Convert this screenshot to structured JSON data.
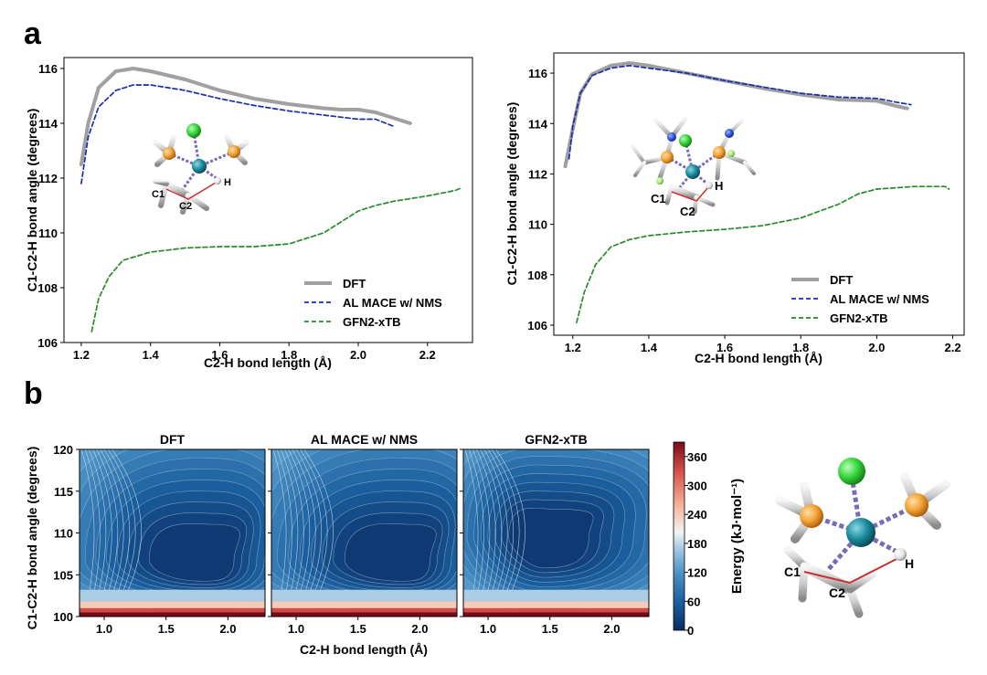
{
  "panels": {
    "a_label": "a",
    "b_label": "b"
  },
  "chart_data": [
    {
      "type": "line",
      "panel": "a-left",
      "xlabel": "C2-H bond length (Å)",
      "ylabel": "C1-C2-H bond angle (degrees)",
      "xlim": [
        1.15,
        2.33
      ],
      "ylim": [
        106.0,
        116.4
      ],
      "xticks": [
        "1.2",
        "1.4",
        "1.6",
        "1.8",
        "2.0",
        "2.2"
      ],
      "yticks": [
        "106",
        "108",
        "110",
        "112",
        "114",
        "116"
      ],
      "legend_position": "lower-right",
      "series": [
        {
          "name": "DFT",
          "color": "#a0a0a0",
          "style": "solid",
          "x": [
            1.2,
            1.22,
            1.25,
            1.3,
            1.35,
            1.4,
            1.5,
            1.6,
            1.7,
            1.8,
            1.9,
            1.95,
            2.0,
            2.05,
            2.1,
            2.15
          ],
          "y": [
            112.5,
            114.0,
            115.3,
            115.9,
            116.0,
            115.9,
            115.6,
            115.2,
            114.9,
            114.7,
            114.55,
            114.5,
            114.5,
            114.4,
            114.2,
            114.0
          ]
        },
        {
          "name": "AL MACE w/ NMS",
          "color": "#1a2faa",
          "style": "dashed",
          "x": [
            1.2,
            1.22,
            1.25,
            1.3,
            1.35,
            1.4,
            1.5,
            1.6,
            1.7,
            1.8,
            1.9,
            2.0,
            2.05,
            2.1
          ],
          "y": [
            111.8,
            113.5,
            114.6,
            115.2,
            115.4,
            115.4,
            115.2,
            114.9,
            114.65,
            114.45,
            114.3,
            114.15,
            114.15,
            113.9
          ]
        },
        {
          "name": "GFN2-xTB",
          "color": "#2a8a2a",
          "style": "dashed",
          "x": [
            1.23,
            1.25,
            1.28,
            1.32,
            1.4,
            1.5,
            1.6,
            1.7,
            1.8,
            1.9,
            1.95,
            2.0,
            2.05,
            2.1,
            2.2,
            2.28,
            2.3
          ],
          "y": [
            106.4,
            107.6,
            108.4,
            109.0,
            109.3,
            109.45,
            109.5,
            109.5,
            109.6,
            110.0,
            110.4,
            110.8,
            111.0,
            111.15,
            111.35,
            111.55,
            111.65
          ]
        }
      ]
    },
    {
      "type": "line",
      "panel": "a-right",
      "xlabel": "C2-H bond length (Å)",
      "ylabel": "C1-C2-H bond angle (degrees)",
      "xlim": [
        1.15,
        2.23
      ],
      "ylim": [
        105.6,
        116.8
      ],
      "xticks": [
        "1.2",
        "1.4",
        "1.6",
        "1.8",
        "2.0",
        "2.2"
      ],
      "yticks": [
        "106",
        "108",
        "110",
        "112",
        "114",
        "116"
      ],
      "legend_position": "lower-right",
      "series": [
        {
          "name": "DFT",
          "color": "#a0a0a0",
          "style": "solid",
          "x": [
            1.18,
            1.2,
            1.22,
            1.25,
            1.3,
            1.35,
            1.4,
            1.5,
            1.6,
            1.7,
            1.8,
            1.9,
            2.0,
            2.05,
            2.08
          ],
          "y": [
            112.3,
            113.8,
            115.2,
            115.95,
            116.3,
            116.4,
            116.3,
            116.0,
            115.7,
            115.4,
            115.15,
            114.95,
            114.9,
            114.7,
            114.6
          ]
        },
        {
          "name": "AL MACE w/ NMS",
          "color": "#1a2faa",
          "style": "dashed",
          "x": [
            1.19,
            1.2,
            1.22,
            1.25,
            1.3,
            1.35,
            1.4,
            1.5,
            1.6,
            1.7,
            1.8,
            1.9,
            2.0,
            2.05,
            2.09
          ],
          "y": [
            112.6,
            113.9,
            115.2,
            115.9,
            116.2,
            116.3,
            116.2,
            116.0,
            115.7,
            115.45,
            115.2,
            115.05,
            115.0,
            114.85,
            114.75
          ]
        },
        {
          "name": "GFN2-xTB",
          "color": "#2a8a2a",
          "style": "dashed",
          "x": [
            1.21,
            1.23,
            1.26,
            1.3,
            1.35,
            1.4,
            1.5,
            1.6,
            1.7,
            1.8,
            1.9,
            1.95,
            2.0,
            2.05,
            2.1,
            2.15,
            2.18,
            2.19
          ],
          "y": [
            106.1,
            107.3,
            108.4,
            109.1,
            109.4,
            109.55,
            109.7,
            109.8,
            109.95,
            110.25,
            110.8,
            111.2,
            111.4,
            111.45,
            111.5,
            111.5,
            111.5,
            111.4
          ]
        }
      ]
    },
    {
      "type": "heatmap",
      "panel": "b",
      "xlabel": "C2-H bond length (Å)",
      "ylabel": "C1-C2-H bond angle (degrees)",
      "xlim": [
        0.8,
        2.3
      ],
      "ylim": [
        100,
        120
      ],
      "xticks": [
        "1.0",
        "1.5",
        "2.0"
      ],
      "yticks": [
        "100",
        "105",
        "110",
        "115",
        "120"
      ],
      "colorbar": {
        "label": "Energy (kJ·mol⁻¹)",
        "range": [
          0,
          390
        ],
        "ticks": [
          "0",
          "60",
          "120",
          "180",
          "240",
          "300",
          "360"
        ],
        "colormap": [
          "#0b2b63",
          "#1a5f9e",
          "#4d94c8",
          "#a8cce4",
          "#f4f4f4",
          "#f5b69a",
          "#d8534a",
          "#7a0a1a"
        ]
      },
      "subplots": [
        {
          "title": "DFT",
          "minimum": [
            1.8,
            106.8
          ]
        },
        {
          "title": "AL MACE w/ NMS",
          "minimum": [
            1.85,
            106.8
          ]
        },
        {
          "title": "GFN2-xTB",
          "minimum": [
            1.45,
            109.5
          ]
        }
      ]
    }
  ],
  "molecule_labels": {
    "c1": "C1",
    "c2": "C2",
    "h": "H"
  },
  "colors": {
    "chloride": "#34d23a",
    "metal": "#1a8a9c",
    "phosphorus": "#f2a032",
    "hydrogen": "#e8e8e8",
    "nitrogen": "#2a50d8",
    "fluorine": "#a8e878",
    "bond": "#7a6ab8",
    "hbond": "#c83030"
  }
}
